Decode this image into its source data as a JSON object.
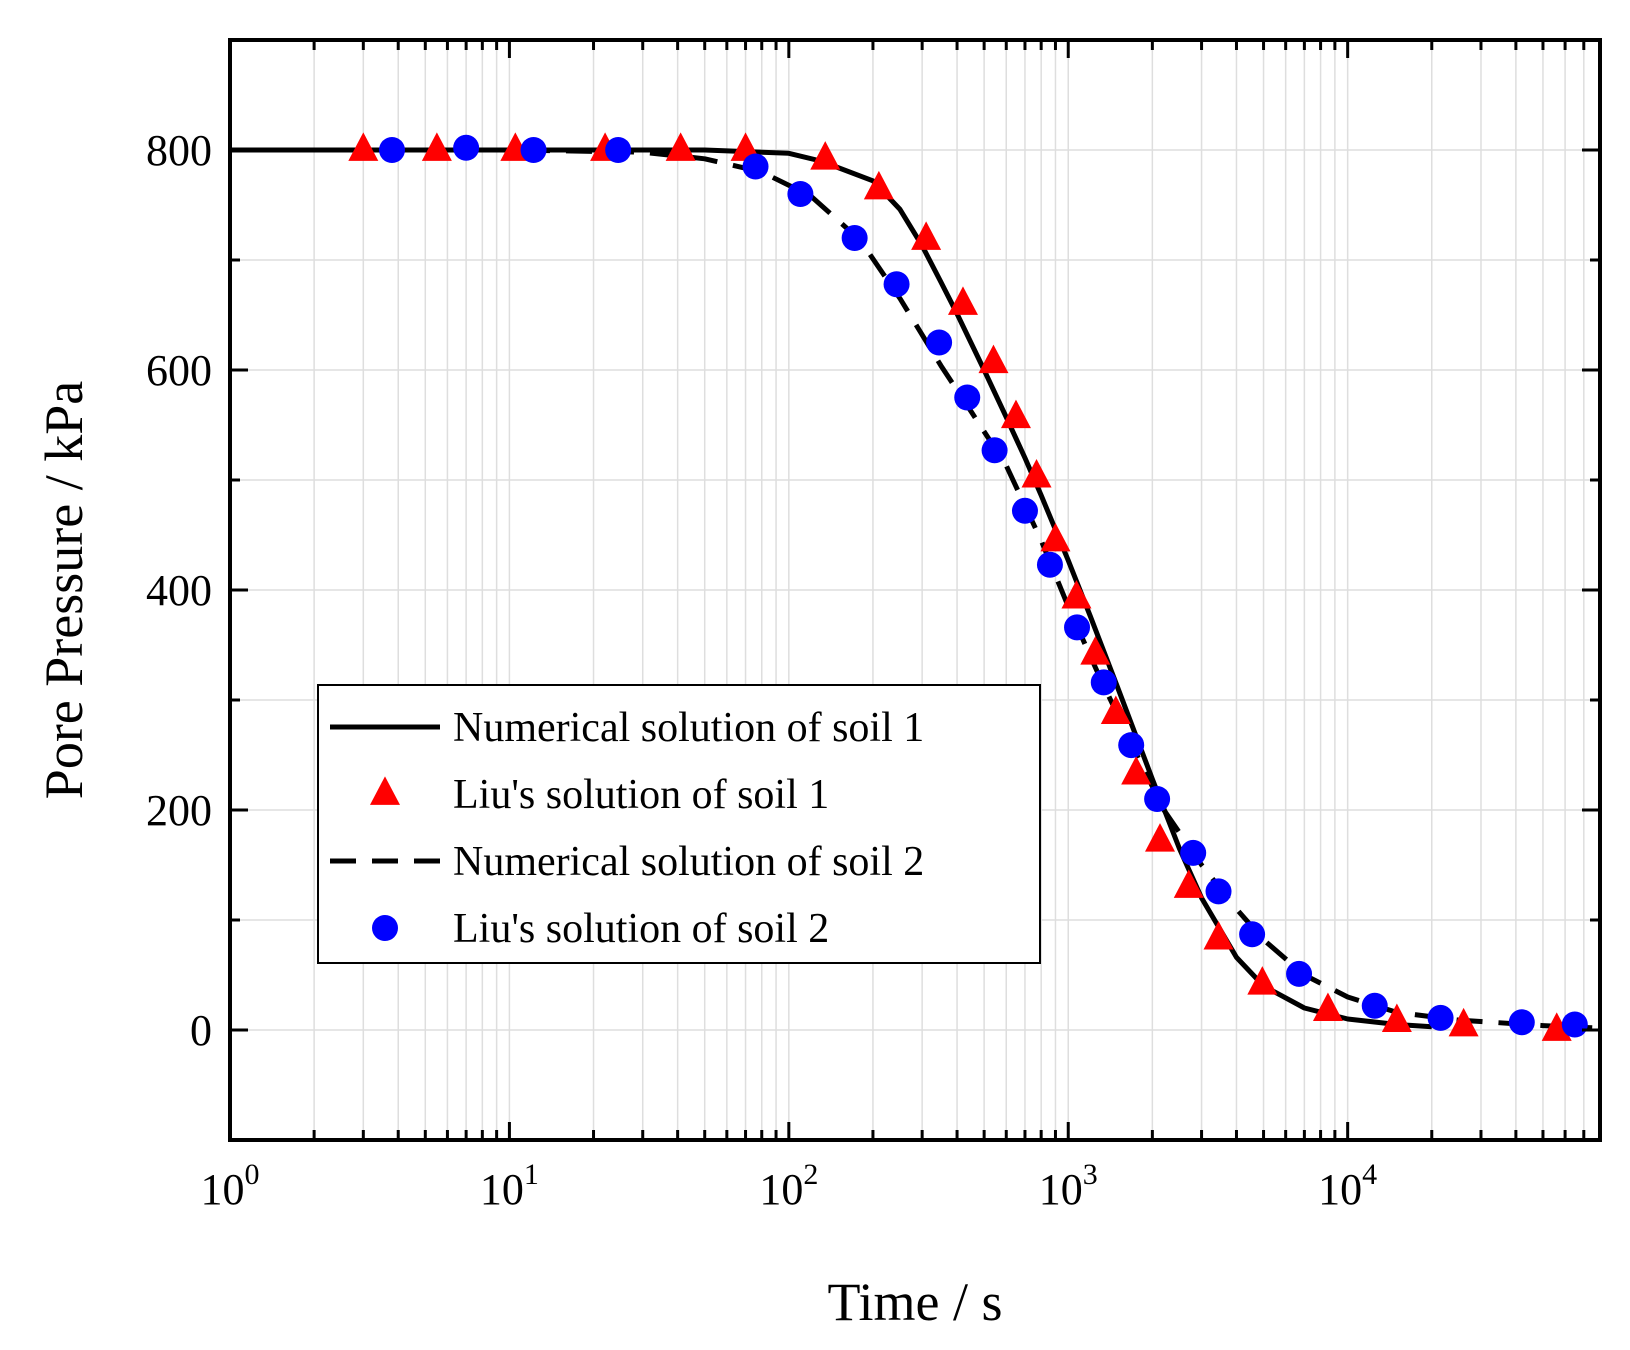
{
  "chart_data": {
    "type": "line",
    "title": "",
    "xlabel": "Time / s",
    "ylabel": "Pore Pressure / kPa",
    "xscale": "log",
    "xlim": [
      1,
      80000
    ],
    "ylim": [
      -100,
      900
    ],
    "grid": true,
    "x_ticks": [
      {
        "value": 1,
        "base": "10",
        "exp": "0"
      },
      {
        "value": 10,
        "base": "10",
        "exp": "1"
      },
      {
        "value": 100,
        "base": "10",
        "exp": "2"
      },
      {
        "value": 1000,
        "base": "10",
        "exp": "3"
      },
      {
        "value": 10000,
        "base": "10",
        "exp": "4"
      }
    ],
    "y_ticks": [
      {
        "value": 0,
        "label": "0"
      },
      {
        "value": 200,
        "label": "200"
      },
      {
        "value": 400,
        "label": "400"
      },
      {
        "value": 600,
        "label": "600"
      },
      {
        "value": 800,
        "label": "800"
      }
    ],
    "legend_position": "lower-left",
    "series": [
      {
        "name": "Numerical solution of soil 1",
        "style": "solid-line",
        "color": "#000000",
        "x": [
          1,
          10,
          50,
          100,
          130,
          200,
          250,
          300,
          350,
          400,
          500,
          600,
          700,
          800,
          1000,
          1200,
          1500,
          2000,
          2500,
          3000,
          4000,
          5000,
          7000,
          10000,
          15000,
          20000
        ],
        "y": [
          800,
          800,
          800,
          797,
          790,
          772,
          746,
          713,
          680,
          651,
          600,
          557,
          520,
          486,
          427,
          376,
          312,
          228,
          165,
          120,
          66,
          40,
          20,
          10,
          5,
          3
        ]
      },
      {
        "name": "Liu's solution of soil 1",
        "style": "triangle-marker",
        "color": "#ff0000",
        "x": [
          3,
          5.5,
          10.5,
          22,
          41,
          70,
          135,
          210,
          310,
          420,
          540,
          650,
          770,
          900,
          1070,
          1250,
          1480,
          1750,
          2130,
          2700,
          3450,
          4950,
          8500,
          15000,
          26000,
          56000
        ],
        "y": [
          800,
          800,
          800,
          800,
          800,
          800,
          792,
          765,
          719,
          660,
          607,
          557,
          503,
          445,
          393,
          342,
          288,
          233,
          172,
          130,
          83,
          42,
          18,
          8,
          4,
          0
        ]
      },
      {
        "name": "Numerical solution of soil 2",
        "style": "dashed-line",
        "color": "#000000",
        "x": [
          1,
          10,
          30,
          50,
          80,
          120,
          180,
          250,
          350,
          450,
          600,
          800,
          1000,
          1300,
          1700,
          2200,
          3000,
          4000,
          5000,
          7000,
          10000,
          15000,
          25000,
          50000,
          75000
        ],
        "y": [
          800,
          800,
          798,
          792,
          780,
          758,
          718,
          665,
          604,
          562,
          513,
          445,
          385,
          320,
          258,
          200,
          150,
          110,
          82,
          50,
          30,
          16,
          9,
          4,
          2
        ]
      },
      {
        "name": "Liu's solution of soil 2",
        "style": "circle-marker",
        "color": "#0000ff",
        "x": [
          3.8,
          7,
          12.2,
          24.5,
          76,
          110,
          172,
          243,
          345,
          435,
          545,
          700,
          860,
          1075,
          1340,
          1680,
          2080,
          2800,
          3450,
          4550,
          6700,
          12500,
          21500,
          42000,
          65000
        ],
        "y": [
          800,
          802,
          800,
          800,
          785,
          760,
          720,
          678,
          625,
          575,
          527,
          472,
          423,
          366,
          316,
          259,
          210,
          161,
          126,
          87,
          51,
          22,
          11,
          7,
          5
        ]
      }
    ]
  }
}
